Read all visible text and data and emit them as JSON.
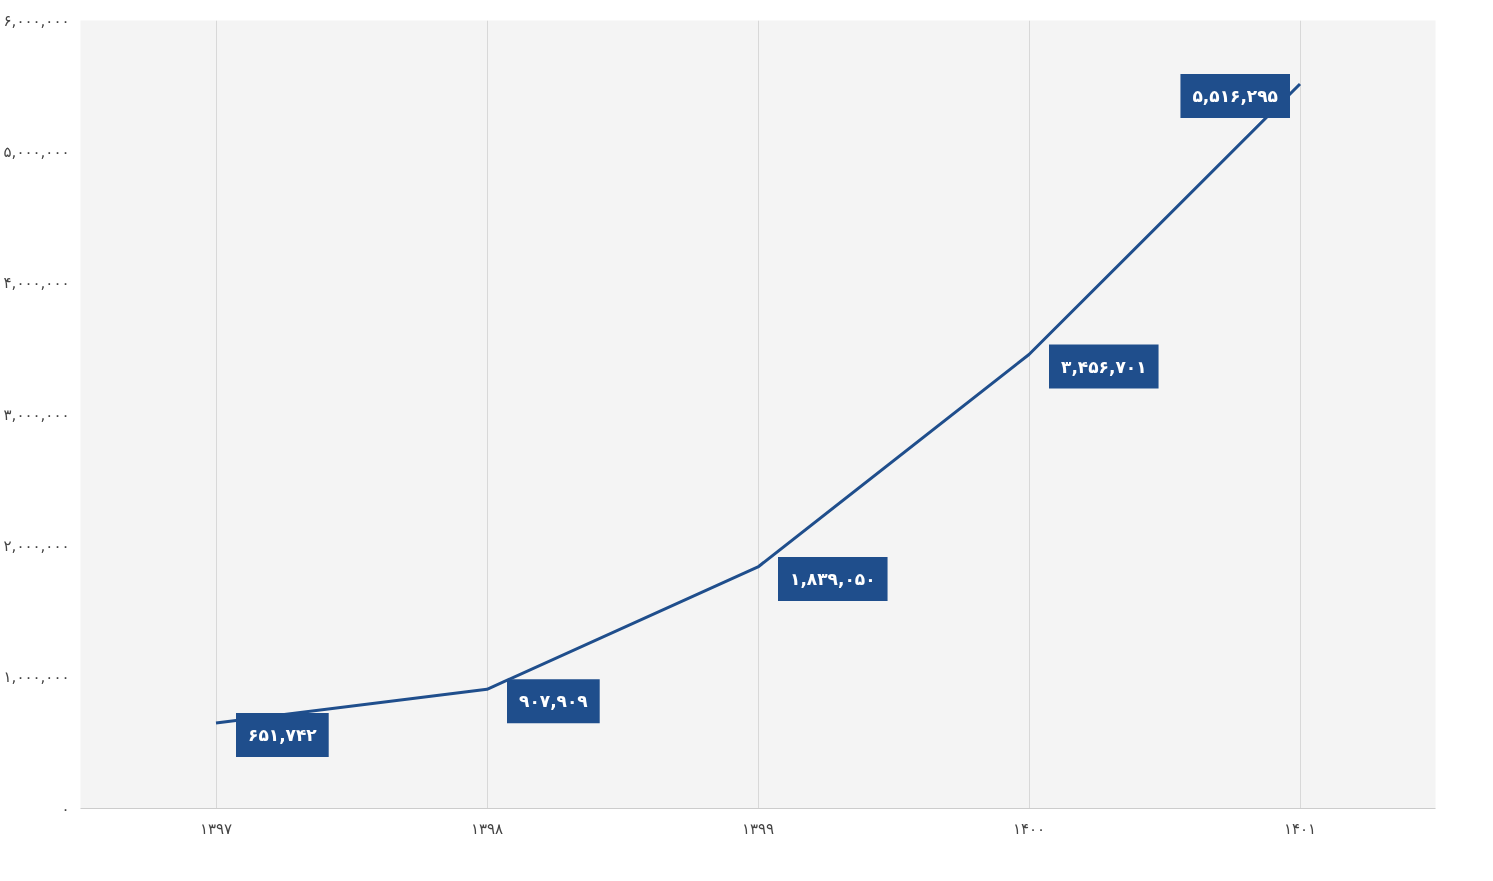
{
  "chart_data": {
    "type": "line",
    "categories": [
      "۱۳۹۷",
      "۱۳۹۸",
      "۱۳۹۹",
      "۱۴۰۰",
      "۱۴۰۱"
    ],
    "series": [
      {
        "color": "#1f4e8c",
        "values": [
          651742,
          907909,
          1839050,
          3456701,
          5516295
        ],
        "value_labels": [
          "۶۵۱,۷۴۲",
          "۹۰۷,۹۰۹",
          "۱,۸۳۹,۰۵۰",
          "۳,۴۵۶,۷۰۱",
          "۵,۵۱۶,۲۹۵"
        ]
      }
    ],
    "ylim": [
      0,
      6000000
    ],
    "yticks": [
      {
        "value": 0,
        "label": "۰"
      },
      {
        "value": 1000000,
        "label": "۱,۰۰۰,۰۰۰"
      },
      {
        "value": 2000000,
        "label": "۲,۰۰۰,۰۰۰"
      },
      {
        "value": 3000000,
        "label": "۳,۰۰۰,۰۰۰"
      },
      {
        "value": 4000000,
        "label": "۴,۰۰۰,۰۰۰"
      },
      {
        "value": 5000000,
        "label": "۵,۰۰۰,۰۰۰"
      },
      {
        "value": 6000000,
        "label": "۶,۰۰۰,۰۰۰"
      }
    ],
    "grid": "x",
    "marker": "none",
    "line_style": "solid"
  }
}
